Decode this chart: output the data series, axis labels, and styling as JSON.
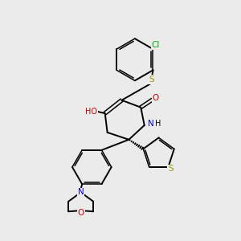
{
  "background_color": "#ebebeb",
  "bond_color": "#000000",
  "atom_colors": {
    "N": "#0000cc",
    "O": "#cc0000",
    "S": "#999900",
    "Cl": "#00aa00",
    "C": "#000000",
    "H": "#000000"
  },
  "lw": 1.4,
  "lw_double": 1.1,
  "fontsize": 7.5
}
